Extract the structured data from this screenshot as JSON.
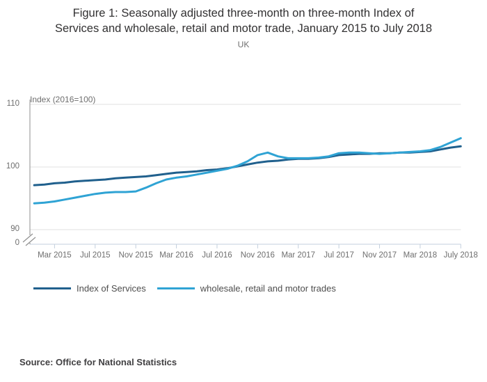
{
  "header": {
    "title": "Figure 1: Seasonally adjusted three-month on three-month Index of\nServices and wholesale, retail and motor trade, January 2015 to July 2018",
    "subtitle": "UK"
  },
  "chart_data": {
    "type": "line",
    "title": "Figure 1: Seasonally adjusted three-month on three-month Index of Services and wholesale, retail and motor trade, January 2015 to July 2018",
    "subtitle": "UK",
    "y_unit_label": "Index (2016=100)",
    "ylim_display": [
      90,
      110
    ],
    "y_tick_labels": [
      "110",
      "100",
      "90",
      "0"
    ],
    "y_tick_values": [
      110,
      100,
      90,
      0
    ],
    "axis_break": true,
    "grid": "horizontal",
    "legend_position": "bottom-left",
    "x": [
      "Jan 2015",
      "Feb 2015",
      "Mar 2015",
      "Apr 2015",
      "May 2015",
      "Jun 2015",
      "Jul 2015",
      "Aug 2015",
      "Sep 2015",
      "Oct 2015",
      "Nov 2015",
      "Dec 2015",
      "Jan 2016",
      "Feb 2016",
      "Mar 2016",
      "Apr 2016",
      "May 2016",
      "Jun 2016",
      "Jul 2016",
      "Aug 2016",
      "Sep 2016",
      "Oct 2016",
      "Nov 2016",
      "Dec 2016",
      "Jan 2017",
      "Feb 2017",
      "Mar 2017",
      "Apr 2017",
      "May 2017",
      "Jun 2017",
      "Jul 2017",
      "Aug 2017",
      "Sep 2017",
      "Oct 2017",
      "Nov 2017",
      "Dec 2017",
      "Jan 2018",
      "Feb 2018",
      "Mar 2018",
      "Apr 2018",
      "May 2018",
      "Jun 2018",
      "Jul 2018"
    ],
    "x_tick_labels": [
      "Mar 2015",
      "Jul 2015",
      "Nov 2015",
      "Mar 2016",
      "Jul 2016",
      "Nov 2016",
      "Mar 2017",
      "Jul 2017",
      "Nov 2017",
      "Mar 2018",
      "July 2018"
    ],
    "x_tick_indices": [
      2,
      6,
      10,
      14,
      18,
      22,
      26,
      30,
      34,
      38,
      42
    ],
    "series": [
      {
        "name": "Index of Services",
        "color": "#20608d",
        "values": [
          97.1,
          97.2,
          97.4,
          97.5,
          97.7,
          97.8,
          97.9,
          98.0,
          98.2,
          98.3,
          98.4,
          98.5,
          98.7,
          98.9,
          99.1,
          99.2,
          99.3,
          99.5,
          99.6,
          99.8,
          100.1,
          100.4,
          100.7,
          100.9,
          101.0,
          101.2,
          101.3,
          101.3,
          101.4,
          101.6,
          101.9,
          102.0,
          102.1,
          102.1,
          102.2,
          102.2,
          102.3,
          102.3,
          102.4,
          102.5,
          102.8,
          103.1,
          103.3
        ]
      },
      {
        "name": "wholesale, retail and motor trades",
        "color": "#2fa3d4",
        "values": [
          94.2,
          94.3,
          94.5,
          94.8,
          95.1,
          95.4,
          95.7,
          95.9,
          96.0,
          96.0,
          96.1,
          96.7,
          97.4,
          98.0,
          98.3,
          98.5,
          98.8,
          99.1,
          99.4,
          99.7,
          100.2,
          100.9,
          101.9,
          102.3,
          101.7,
          101.4,
          101.4,
          101.4,
          101.5,
          101.7,
          102.2,
          102.3,
          102.3,
          102.2,
          102.1,
          102.2,
          102.3,
          102.4,
          102.5,
          102.7,
          103.2,
          103.9,
          104.6
        ]
      }
    ],
    "colors": {
      "gridline": "#e2e2e2",
      "x_axis": "#c3cfdd",
      "y_axis": "#8f8f8f",
      "tick_text": "#6e6e6e"
    }
  },
  "footer": {
    "source": "Source: Office for National Statistics"
  }
}
